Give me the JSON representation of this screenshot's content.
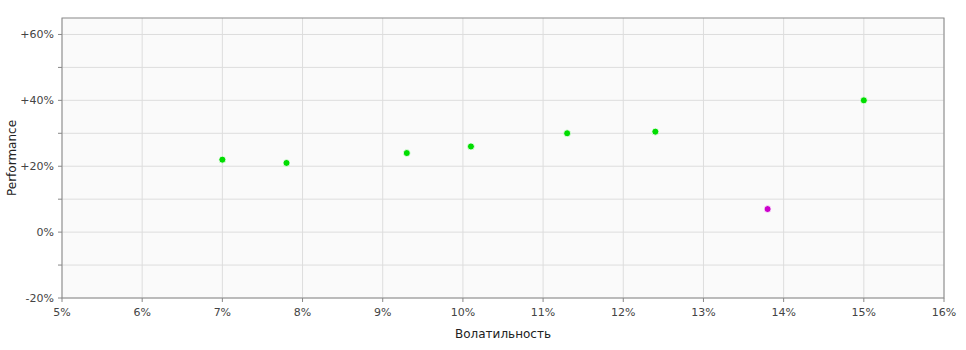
{
  "chart_data": {
    "type": "scatter",
    "xlabel": "Волатильность",
    "ylabel": "Performance",
    "xlim": [
      0.05,
      0.16
    ],
    "ylim": [
      -0.2,
      0.65
    ],
    "xticks": [
      {
        "value": 0.05,
        "label": "5%"
      },
      {
        "value": 0.06,
        "label": "6%"
      },
      {
        "value": 0.07,
        "label": "7%"
      },
      {
        "value": 0.08,
        "label": "8%"
      },
      {
        "value": 0.09,
        "label": "9%"
      },
      {
        "value": 0.1,
        "label": "10%"
      },
      {
        "value": 0.11,
        "label": "11%"
      },
      {
        "value": 0.12,
        "label": "12%"
      },
      {
        "value": 0.13,
        "label": "13%"
      },
      {
        "value": 0.14,
        "label": "14%"
      },
      {
        "value": 0.15,
        "label": "15%"
      },
      {
        "value": 0.16,
        "label": "16%"
      }
    ],
    "yticks": [
      {
        "value": -0.2,
        "label": "-20%"
      },
      {
        "value": -0.1,
        "label": null
      },
      {
        "value": 0.0,
        "label": "0%"
      },
      {
        "value": 0.1,
        "label": null
      },
      {
        "value": 0.2,
        "label": "+20%"
      },
      {
        "value": 0.3,
        "label": null
      },
      {
        "value": 0.4,
        "label": "+40%"
      },
      {
        "value": 0.5,
        "label": null
      },
      {
        "value": 0.6,
        "label": "+60%"
      }
    ],
    "grid": true,
    "series": [
      {
        "color": "#00dd00",
        "marker": "circle",
        "x": [
          0.07,
          0.078,
          0.093,
          0.101,
          0.113,
          0.124,
          0.15
        ],
        "values": [
          0.22,
          0.21,
          0.24,
          0.26,
          0.3,
          0.305,
          0.4
        ]
      },
      {
        "color": "#cc00cc",
        "marker": "circle",
        "x": [
          0.138
        ],
        "values": [
          0.07
        ]
      }
    ]
  }
}
